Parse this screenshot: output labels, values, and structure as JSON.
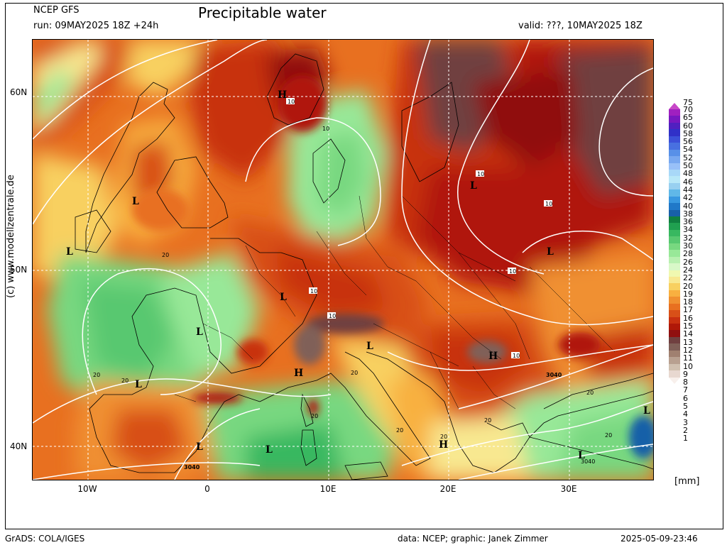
{
  "header": {
    "model": "NCEP GFS",
    "run": "run: 09MAY2025 18Z +24h",
    "title": "Precipitable water",
    "valid": "valid: ???, 10MAY2025 18Z"
  },
  "axes": {
    "lat_labels": [
      "60N",
      "50N",
      "40N"
    ],
    "lon_labels": [
      "10W",
      "0",
      "10E",
      "20E",
      "30E"
    ]
  },
  "colorbar": {
    "levels": [
      "75",
      "70",
      "65",
      "60",
      "58",
      "56",
      "54",
      "52",
      "50",
      "48",
      "46",
      "44",
      "42",
      "40",
      "38",
      "36",
      "34",
      "32",
      "30",
      "28",
      "26",
      "24",
      "22",
      "20",
      "19",
      "18",
      "17",
      "16",
      "15",
      "14",
      "13",
      "12",
      "11",
      "10",
      "9",
      "8",
      "7",
      "6",
      "5",
      "4",
      "3",
      "2",
      "1"
    ],
    "colors": [
      "#c848c8",
      "#a020c0",
      "#7818c0",
      "#5020c0",
      "#3030c8",
      "#3c50d8",
      "#4870e0",
      "#5890e8",
      "#78a8f0",
      "#98c0f8",
      "#a8d8f8",
      "#b8e8f8",
      "#98d0f0",
      "#60b8e8",
      "#3898e0",
      "#2078c8",
      "#1860a8",
      "#108040",
      "#20a050",
      "#38b860",
      "#58c870",
      "#78d880",
      "#98e898",
      "#b8f0b0",
      "#d8f8c8",
      "#f0f8b0",
      "#f8e890",
      "#f8d060",
      "#f8b040",
      "#f09030",
      "#e87020",
      "#d85018",
      "#c83010",
      "#b01808",
      "#901010",
      "#704040",
      "#806058",
      "#a08070",
      "#b8a090",
      "#d0c0b0",
      "#e8d8d0",
      "#f8f0ec"
    ],
    "unit": "[mm]"
  },
  "map_labels": {
    "pressure_centers": [
      "H",
      "L",
      "L",
      "L",
      "L",
      "L",
      "L",
      "L",
      "L",
      "L",
      "H",
      "H",
      "H",
      "L",
      "L",
      "L"
    ],
    "contour_values": [
      "10",
      "10",
      "10",
      "10",
      "10",
      "10",
      "10",
      "10",
      "20",
      "20",
      "20",
      "20",
      "20",
      "20",
      "20",
      "20",
      "20",
      "20",
      "3040",
      "3040"
    ]
  },
  "credit": "(c) www.modellzentrale.de",
  "footer": {
    "left": "GrADS: COLA/IGES",
    "center": "data: NCEP; graphic: Janek Zimmer",
    "right": "2025-05-09-23:46"
  }
}
